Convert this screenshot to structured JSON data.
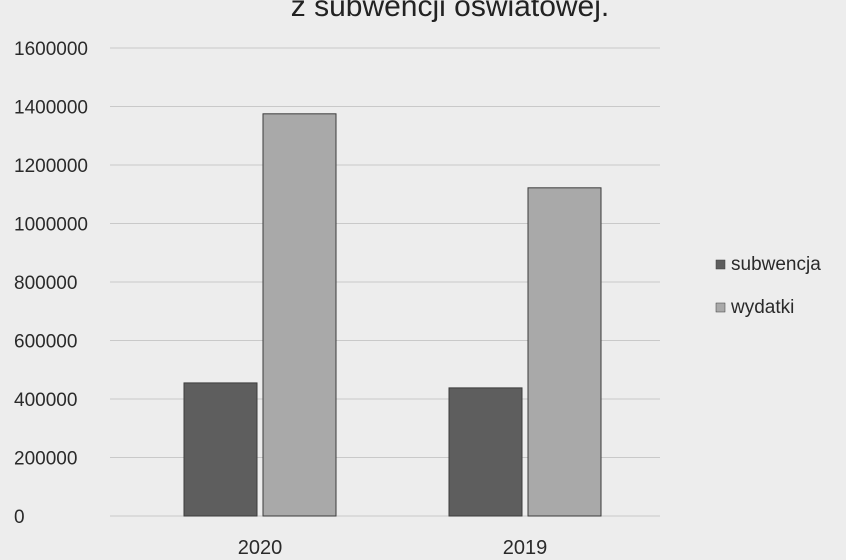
{
  "chart_data": {
    "type": "bar",
    "title": "z subwencji oświatowej.",
    "xlabel": "",
    "ylabel": "",
    "categories": [
      "2020",
      "2019"
    ],
    "series": [
      {
        "name": "subwencja",
        "values": [
          455000,
          438000
        ],
        "color": "#5e5e5e"
      },
      {
        "name": "wydatki",
        "values": [
          1375000,
          1122000
        ],
        "color": "#a9a9a9"
      }
    ],
    "ylim": [
      0,
      1600000
    ],
    "yticks": [
      "0",
      "200000",
      "400000",
      "600000",
      "800000",
      "1000000",
      "1200000",
      "1400000",
      "1600000"
    ],
    "grid": true,
    "legend_position": "right"
  }
}
